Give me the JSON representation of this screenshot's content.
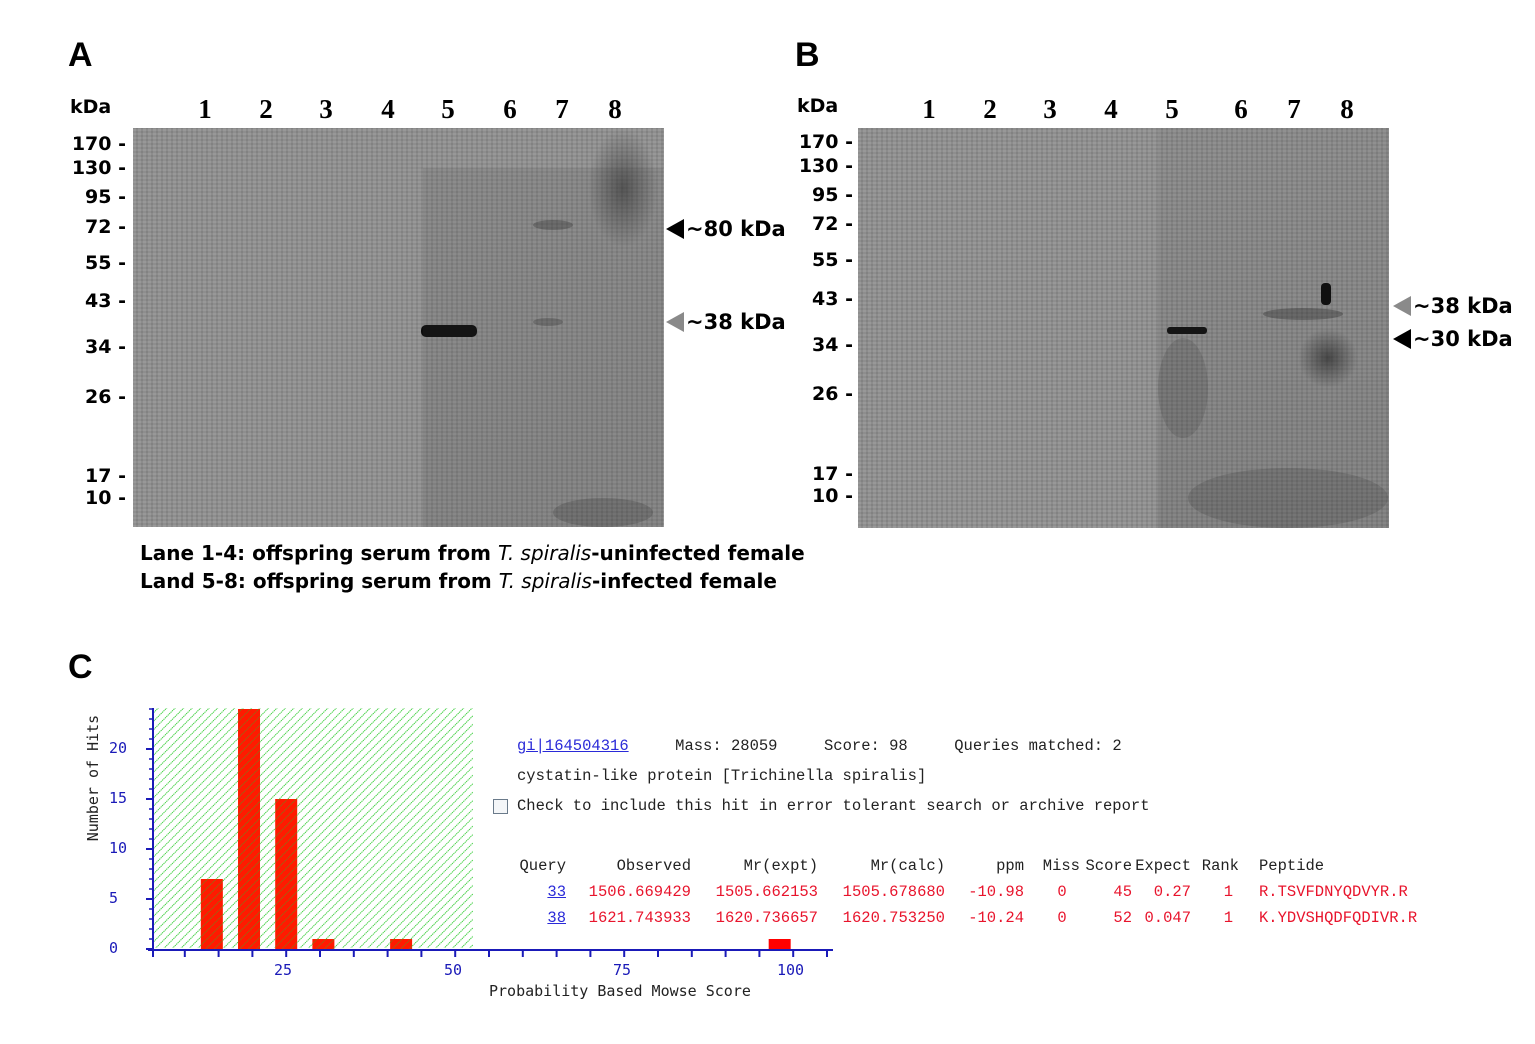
{
  "panels": {
    "A": {
      "letter": "A",
      "kda_label": "kDa",
      "lanes": [
        "1",
        "2",
        "3",
        "4",
        "5",
        "6",
        "7",
        "8"
      ],
      "markers": [
        "170 -",
        "130 -",
        "95 -",
        "72 -",
        "55 -",
        "43 -",
        "34 -",
        "26 -",
        "17 -",
        "10 -"
      ],
      "annotations": [
        {
          "label": "~80 kDa",
          "arrow_color": "#000000"
        },
        {
          "label": "~38 kDa",
          "arrow_color": "#8a8a8a"
        }
      ]
    },
    "B": {
      "letter": "B",
      "kda_label": "kDa",
      "lanes": [
        "1",
        "2",
        "3",
        "4",
        "5",
        "6",
        "7",
        "8"
      ],
      "markers": [
        "170 -",
        "130 -",
        "95 -",
        "72 -",
        "55 -",
        "43 -",
        "34 -",
        "26 -",
        "17 -",
        "10 -"
      ],
      "annotations": [
        {
          "label": "~38 kDa",
          "arrow_color": "#8a8a8a"
        },
        {
          "label": "~30 kDa",
          "arrow_color": "#000000"
        }
      ]
    },
    "C": {
      "letter": "C"
    }
  },
  "legend": {
    "line1": {
      "prefix": "Lane 1-4: offspring serum from ",
      "species": "T. spiralis",
      "suffix": "-uninfected female"
    },
    "line2": {
      "prefix": "Land 5-8: offspring serum from ",
      "species": "T. spiralis",
      "suffix": "-infected female"
    }
  },
  "chart_data": {
    "type": "bar",
    "title": "",
    "xlabel": "Probability Based Mowse Score",
    "ylabel": "Number of Hits",
    "x": [
      14,
      19.5,
      25,
      30.5,
      42,
      98
    ],
    "values": [
      7,
      24,
      15,
      1,
      1,
      1
    ],
    "xticks": [
      "25",
      "50",
      "75",
      "100"
    ],
    "yticks": [
      "0",
      "5",
      "10",
      "15",
      "20"
    ],
    "xlim": [
      5,
      106
    ],
    "ylim": [
      0,
      24
    ],
    "threshold_region": {
      "x_from": 5,
      "x_to": 52.5,
      "fill": "green hatched"
    },
    "bar_color": "#ff0000",
    "axis_color": "#1a1ab8",
    "grid": false
  },
  "mascot": {
    "accession": "gi|164504316",
    "mass_label": "Mass:",
    "mass": "28059",
    "score_label": "Score:",
    "score": "98",
    "queries_label": "Queries matched:",
    "queries": "2",
    "description": "cystatin-like protein [Trichinella spiralis]",
    "checkbox_label": "Check to include this hit in error tolerant search or archive report",
    "table": {
      "headers": [
        "Query",
        "Observed",
        "Mr(expt)",
        "Mr(calc)",
        "ppm",
        "Miss",
        "Score",
        "Expect",
        "Rank",
        "Peptide"
      ],
      "rows": [
        [
          "33",
          "1506.669429",
          "1505.662153",
          "1505.678680",
          "-10.98",
          "0",
          "45",
          "0.27",
          "1",
          "R.TSVFDNYQDVYR.R"
        ],
        [
          "38",
          "1621.743933",
          "1620.736657",
          "1620.753250",
          "-10.24",
          "0",
          "52",
          "0.047",
          "1",
          "K.YDVSHQDFQDIVR.R"
        ]
      ]
    }
  }
}
